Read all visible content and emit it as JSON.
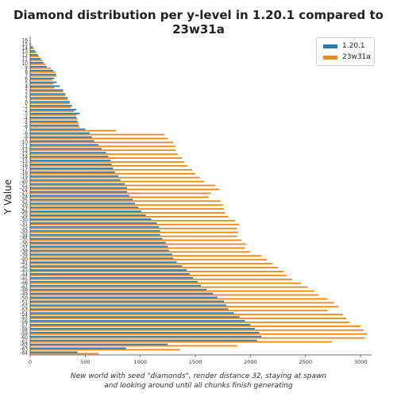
{
  "chart_data": {
    "type": "bar",
    "orientation": "horizontal",
    "title": "Diamond distribution per y-level in 1.20.1 compared to 23w31a",
    "ylabel": "Y Value",
    "xlabel": "",
    "caption_line1": "New world with seed \"diamonds\", render distance 32, staying at spawn",
    "caption_line2": "and looking around until all chunks finish generating",
    "xlim": [
      0,
      3100
    ],
    "x_ticks": [
      0,
      500,
      1000,
      1500,
      2000,
      2500,
      3000
    ],
    "x_tick_labels": [
      "0",
      "500",
      "1000",
      "1500",
      "2000",
      "2500",
      "3000"
    ],
    "legend_position": "top-right",
    "categories": [
      "16",
      "15",
      "14",
      "13",
      "12",
      "11",
      "10",
      "9",
      "8",
      "7",
      "6",
      "5",
      "4",
      "3",
      "2",
      "1",
      "0",
      "-1",
      "-2",
      "-3",
      "-4",
      "-5",
      "-6",
      "-7",
      "-8",
      "-9",
      "-10",
      "-11",
      "-12",
      "-13",
      "-14",
      "-15",
      "-16",
      "-17",
      "-18",
      "-19",
      "-20",
      "-21",
      "-22",
      "-23",
      "-24",
      "-25",
      "-26",
      "-27",
      "-28",
      "-29",
      "-30",
      "-31",
      "-32",
      "-33",
      "-34",
      "-35",
      "-36",
      "-37",
      "-38",
      "-39",
      "-40",
      "-41",
      "-42",
      "-43",
      "-44",
      "-45",
      "-46",
      "-47",
      "-48",
      "-49",
      "-50",
      "-51",
      "-52",
      "-53",
      "-54",
      "-55",
      "-56",
      "-57",
      "-58",
      "-59",
      "-60",
      "-61",
      "-62",
      "-63",
      "-64"
    ],
    "series": [
      {
        "name": "1.20.1",
        "color": "#2b7bb0",
        "values": [
          0,
          5,
          25,
          45,
          70,
          95,
          120,
          150,
          210,
          235,
          220,
          240,
          270,
          300,
          320,
          340,
          360,
          380,
          420,
          450,
          420,
          430,
          440,
          500,
          540,
          560,
          580,
          620,
          650,
          690,
          710,
          730,
          740,
          750,
          770,
          800,
          820,
          860,
          880,
          880,
          900,
          930,
          950,
          980,
          1010,
          1050,
          1100,
          1150,
          1170,
          1180,
          1180,
          1200,
          1230,
          1250,
          1260,
          1290,
          1300,
          1330,
          1380,
          1420,
          1450,
          1480,
          1520,
          1550,
          1600,
          1660,
          1700,
          1760,
          1780,
          1800,
          1850,
          1900,
          1950,
          2000,
          2040,
          2080,
          2100,
          2060,
          1250,
          870,
          430
        ]
      },
      {
        "name": "23w31a",
        "color": "#f08a1a",
        "values": [
          0,
          10,
          35,
          55,
          80,
          110,
          140,
          190,
          230,
          240,
          200,
          210,
          220,
          300,
          320,
          340,
          360,
          370,
          400,
          420,
          430,
          440,
          450,
          780,
          1220,
          1250,
          1300,
          1320,
          1320,
          1340,
          1380,
          1400,
          1430,
          1470,
          1500,
          1540,
          1580,
          1680,
          1720,
          1640,
          1620,
          1730,
          1750,
          1760,
          1770,
          1800,
          1860,
          1900,
          1880,
          1890,
          1880,
          1920,
          1960,
          1950,
          2000,
          2100,
          2150,
          2200,
          2250,
          2300,
          2330,
          2380,
          2460,
          2520,
          2580,
          2620,
          2700,
          2760,
          2800,
          2700,
          2840,
          2870,
          2900,
          3000,
          3030,
          3060,
          3040,
          2740,
          1880,
          1360,
          620
        ]
      }
    ]
  }
}
